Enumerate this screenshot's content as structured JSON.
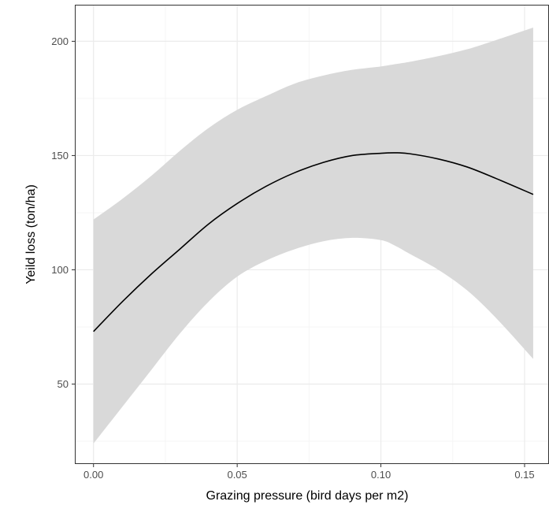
{
  "chart_data": {
    "type": "line",
    "title": "",
    "xlabel": "Grazing pressure (bird days per m2)",
    "ylabel": "Yeild loss (ton/ha)",
    "xlim": [
      -0.0065,
      0.1585
    ],
    "ylim": [
      15,
      216
    ],
    "x_ticks": [
      0.0,
      0.05,
      0.1,
      0.15
    ],
    "x_tick_labels": [
      "0.00",
      "0.05",
      "0.10",
      "0.15"
    ],
    "y_ticks": [
      50,
      100,
      150,
      200
    ],
    "y_tick_labels": [
      "50",
      "100",
      "150",
      "200"
    ],
    "grid": true,
    "legend": "none",
    "colors": {
      "line": "#000000",
      "ribbon": "#d9d9d9",
      "grid_major": "#ebebeb",
      "grid_minor": "#f5f5f5",
      "panel_border": "#333333"
    },
    "series": [
      {
        "x": [
          0.0,
          0.01,
          0.02,
          0.03,
          0.04,
          0.05,
          0.06,
          0.07,
          0.08,
          0.09,
          0.1,
          0.105,
          0.11,
          0.12,
          0.13,
          0.14,
          0.153
        ],
        "y": [
          73.0,
          86.0,
          98.0,
          109.0,
          120.0,
          129.0,
          136.5,
          142.5,
          147.0,
          150.0,
          151.0,
          151.2,
          150.8,
          148.5,
          145.0,
          140.0,
          133.0
        ],
        "lower": [
          24.0,
          40.0,
          56.0,
          72.0,
          86.0,
          97.0,
          104.0,
          109.0,
          112.5,
          114.0,
          113.0,
          110.5,
          107.0,
          100.0,
          91.0,
          79.0,
          61.0
        ],
        "upper": [
          122.0,
          131.0,
          141.0,
          152.0,
          162.0,
          170.0,
          176.0,
          181.5,
          185.0,
          187.5,
          189.0,
          190.0,
          191.0,
          193.5,
          196.5,
          200.5,
          206.0
        ]
      }
    ]
  }
}
